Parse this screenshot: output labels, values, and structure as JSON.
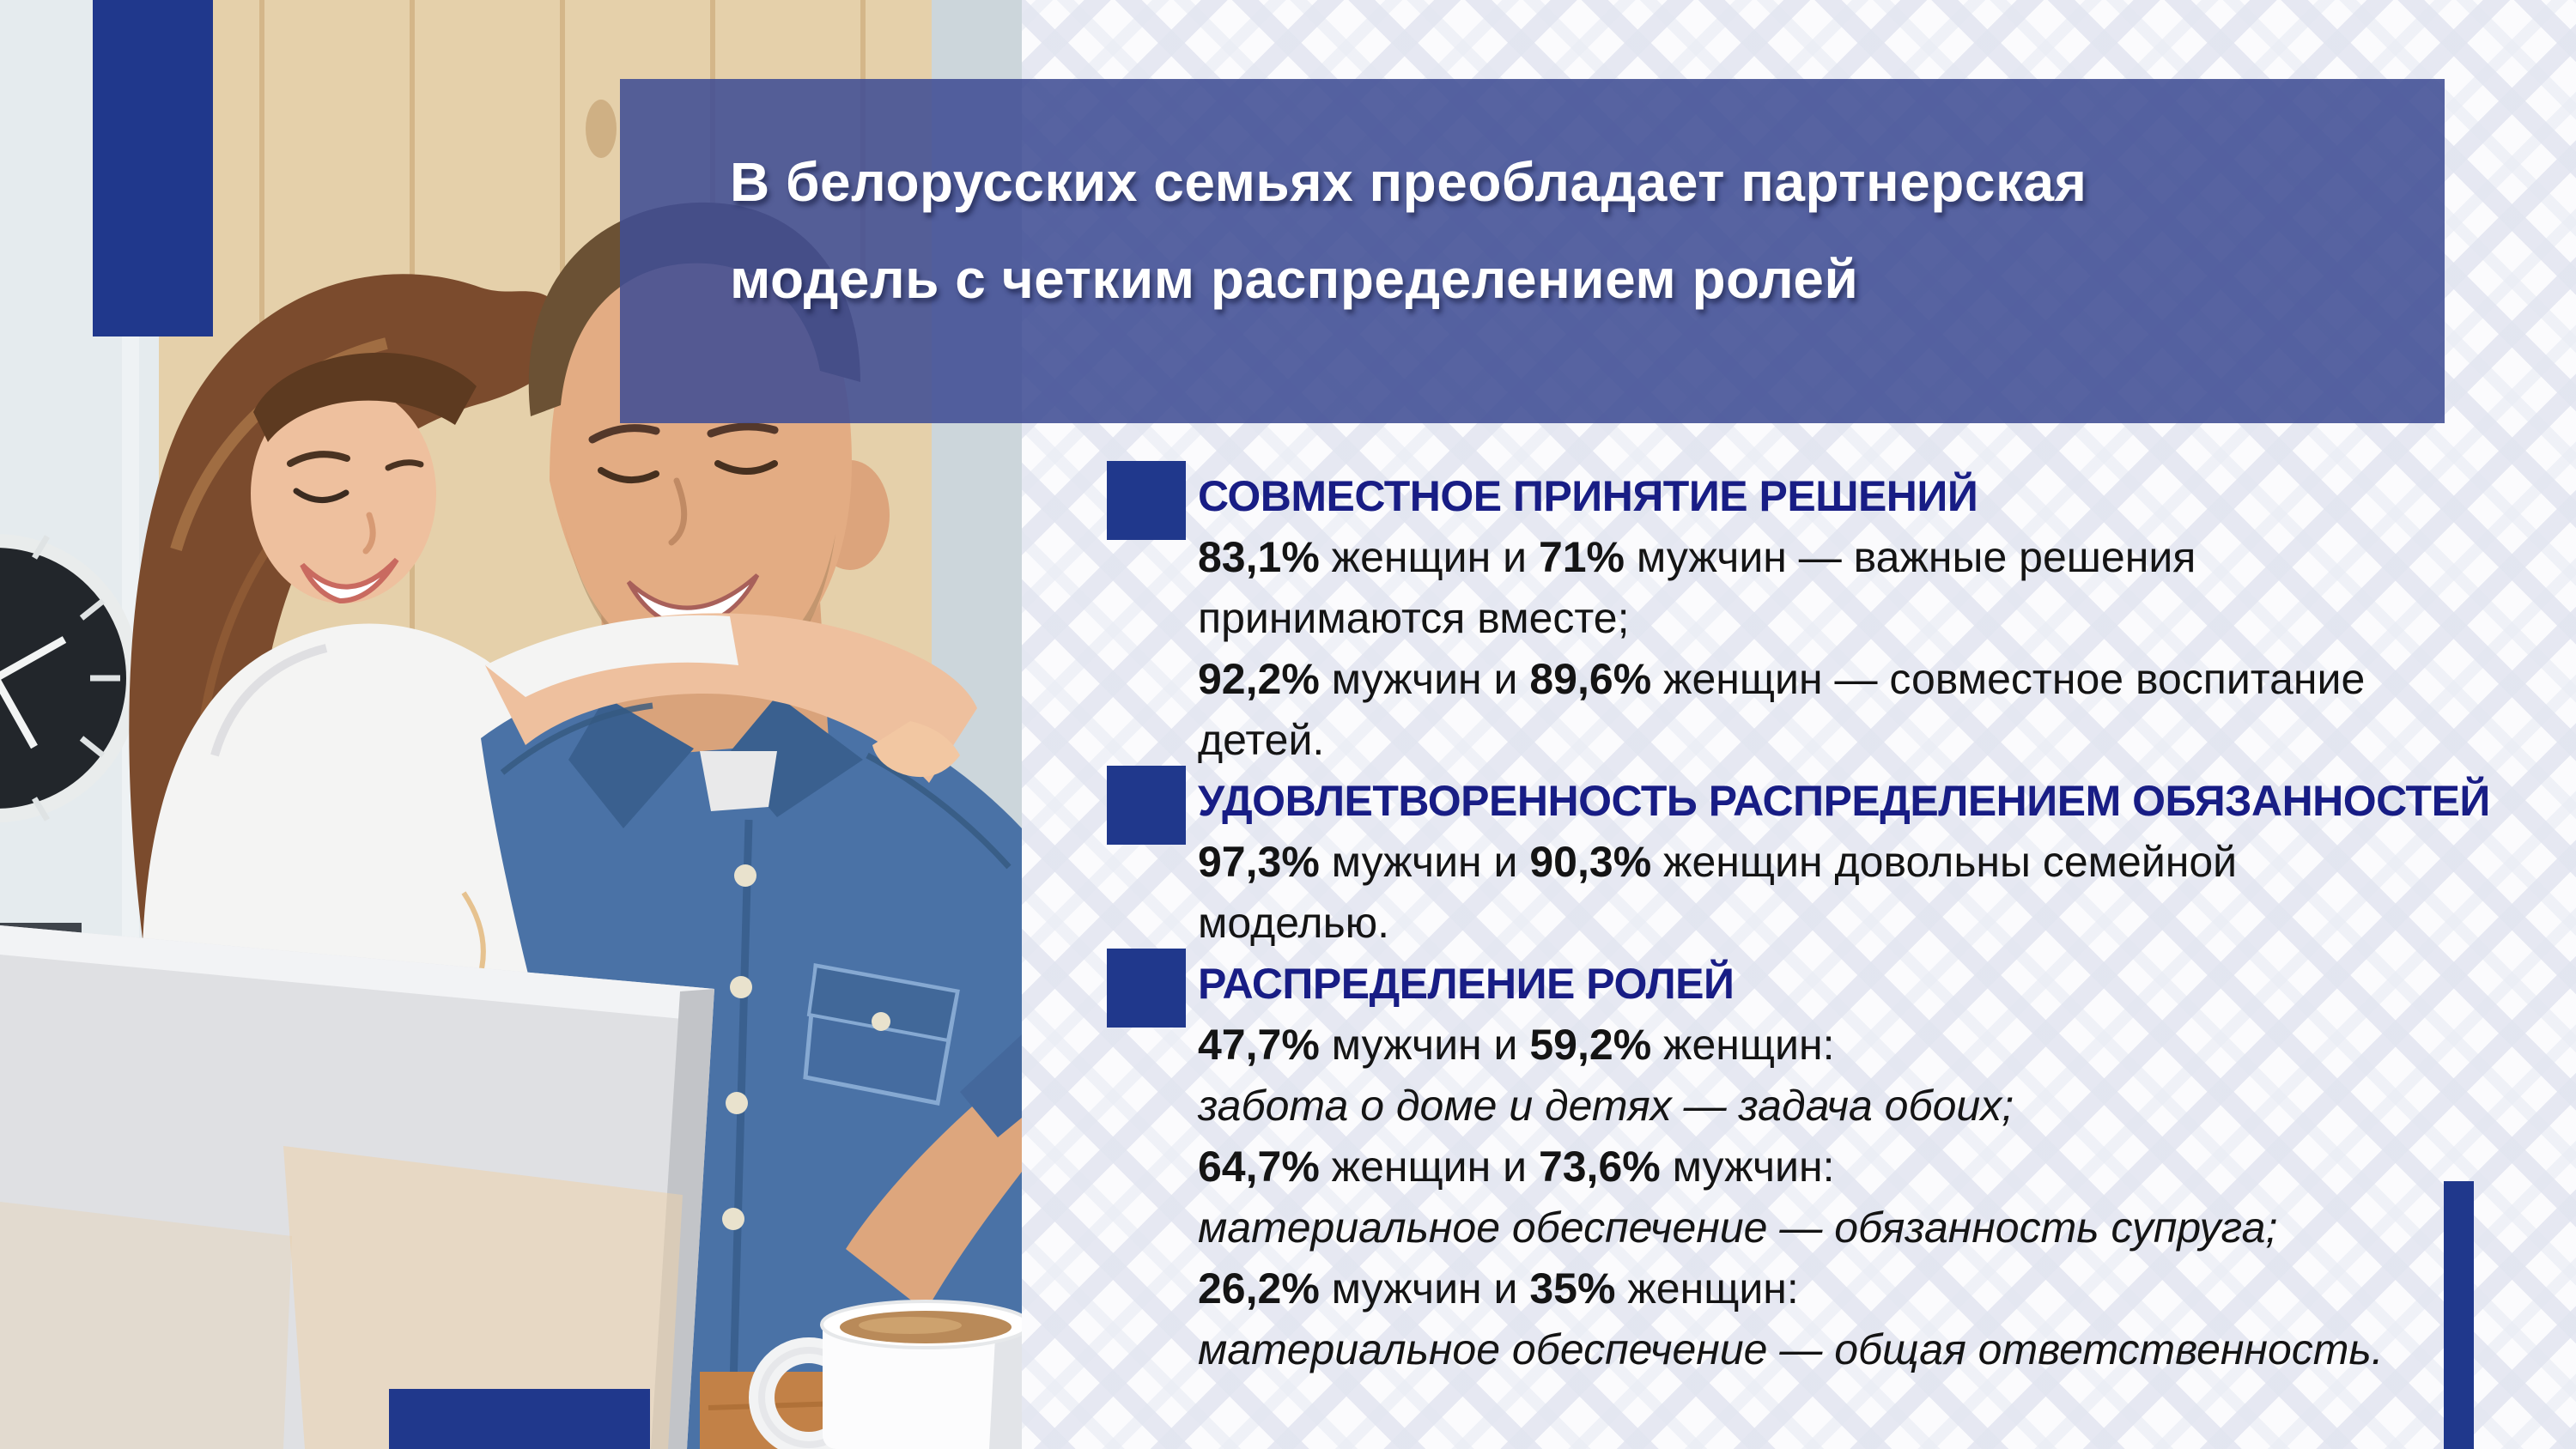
{
  "slide": {
    "title_lines": [
      "В белорусских семьях преобладает партнерская",
      "модель с четким распределением ролей"
    ],
    "sections": [
      {
        "heading": "СОВМЕСТНОЕ ПРИНЯТИЕ РЕШЕНИЙ",
        "lines": [
          [
            {
              "t": "83,1%",
              "b": true
            },
            {
              "t": " женщин и "
            },
            {
              "t": "71%",
              "b": true
            },
            {
              "t": " мужчин — важные решения"
            }
          ],
          [
            {
              "t": "принимаются вместе;"
            }
          ],
          [
            {
              "t": "92,2%",
              "b": true
            },
            {
              "t": " мужчин и "
            },
            {
              "t": "89,6%",
              "b": true
            },
            {
              "t": " женщин — совместное воспитание"
            }
          ],
          [
            {
              "t": "детей."
            }
          ]
        ]
      },
      {
        "heading": "УДОВЛЕТВОРЕННОСТЬ РАСПРЕДЕЛЕНИЕМ ОБЯЗАННОСТЕЙ",
        "lines": [
          [
            {
              "t": "97,3%",
              "b": true
            },
            {
              "t": " мужчин и "
            },
            {
              "t": "90,3%",
              "b": true
            },
            {
              "t": " женщин довольны семейной"
            }
          ],
          [
            {
              "t": "моделью."
            }
          ]
        ]
      },
      {
        "heading": "РАСПРЕДЕЛЕНИЕ РОЛЕЙ",
        "lines": [
          [
            {
              "t": "47,7%",
              "b": true
            },
            {
              "t": " мужчин и "
            },
            {
              "t": "59,2%",
              "b": true
            },
            {
              "t": " женщин:"
            }
          ],
          [
            {
              "t": "забота о доме и детях — задача обоих;",
              "i": true
            }
          ],
          [
            {
              "t": "64,7%",
              "b": true
            },
            {
              "t": " женщин и "
            },
            {
              "t": "73,6%",
              "b": true
            },
            {
              "t": " мужчин:"
            }
          ],
          [
            {
              "t": "материальное обеспечение — обязанность супруга;",
              "i": true
            }
          ],
          [
            {
              "t": "26,2%",
              "b": true
            },
            {
              "t": " мужчин и "
            },
            {
              "t": "35%",
              "b": true
            },
            {
              "t": " женщин:"
            }
          ],
          [
            {
              "t": "материальное обеспечение — общая ответственность.",
              "i": true
            }
          ]
        ]
      }
    ],
    "colors": {
      "navy": "#20388c",
      "heading": "#181d85",
      "banner": "rgba(64,77,148,0.88)",
      "body": "#141414",
      "title": "#ffffff",
      "pattern_stripe": "#e2e5f0",
      "background": "#fbfbfd"
    }
  }
}
